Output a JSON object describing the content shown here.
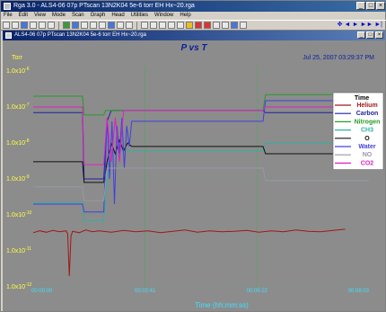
{
  "window": {
    "title": "Rga 3.0 - ALS4-06 07p PTscan 13N2K04 5e-6 torr EH Hx~20.rga",
    "buttons": [
      "_",
      "□",
      "×"
    ]
  },
  "menu": [
    "File",
    "Edit",
    "View",
    "Mode",
    "Scan",
    "Graph",
    "Head",
    "Utilities",
    "Window",
    "Help"
  ],
  "toolbar": {
    "icons": [
      "new-icon",
      "open-icon",
      "save-icon",
      "print-icon",
      "refresh-icon",
      "target-icon",
      "bar-icon",
      "bar-icon",
      "table-icon",
      "grid-icon",
      "grid-icon",
      "monitor-icon",
      "grid-icon",
      "grid-icon",
      "graph-icon",
      "leak-icon",
      "zoom-in-icon",
      "zoom-out-icon",
      "undo-icon",
      "filament-icon",
      "stop-icon",
      "red-x-icon",
      "pan-icon",
      "tools-icon",
      "chart-icon",
      "help-icon"
    ],
    "nav_icons": [
      "move-icon",
      "arrow-left-icon",
      "arrow-right-icon",
      "fast-forward-icon",
      "end-icon"
    ]
  },
  "child_window": {
    "title": "ALS4-06 07p PTscan 13N2K04 5e-6 torr EH Hx~20.rga",
    "buttons": [
      "_",
      "□",
      "×"
    ]
  },
  "chart_data": {
    "type": "line",
    "title": "P vs T",
    "timestamp": "Jul 25, 2007  03:29:37 PM",
    "ylabel": "Torr",
    "xlabel": "Time (hh:mm:ss)",
    "yscale": "log",
    "ylim": [
      1e-12,
      1e-06
    ],
    "xlim": [
      0,
      409
    ],
    "x_ticks": [
      "00:00:00",
      "00:02:41",
      "00:05:22",
      "00:08:03"
    ],
    "y_ticks": [
      {
        "mant": "1.0x10",
        "exp": "-6"
      },
      {
        "mant": "1.0x10",
        "exp": "-7"
      },
      {
        "mant": "1.0x10",
        "exp": "-8"
      },
      {
        "mant": "1.0x10",
        "exp": "-9"
      },
      {
        "mant": "1.0x10",
        "exp": "-10"
      },
      {
        "mant": "1.0x10",
        "exp": "-11"
      },
      {
        "mant": "1.0x10",
        "exp": "-12"
      }
    ],
    "legend_title": "Time",
    "legend_position": "right",
    "series": [
      {
        "name": "Helium",
        "color": "#a01818",
        "x": [
          0,
          8,
          16,
          24,
          32,
          40,
          42,
          44,
          46,
          48,
          56,
          64,
          72,
          80,
          95,
          110,
          125,
          140,
          155,
          170,
          185,
          200,
          215,
          230,
          245,
          260,
          275,
          290,
          305,
          320,
          335,
          350,
          365,
          380
        ],
        "y": [
          3.2e-11,
          3.6e-11,
          3.3e-11,
          3.7e-11,
          3.4e-11,
          3.6e-11,
          3e-11,
          2e-12,
          2.6e-11,
          3.5e-11,
          3.2e-11,
          3.8e-11,
          3.4e-11,
          3.6e-11,
          3.3e-11,
          3.7e-11,
          3.4e-11,
          3.6e-11,
          3.2e-11,
          3.5e-11,
          3.8e-11,
          3.3e-11,
          3.6e-11,
          3.4e-11,
          3.5e-11,
          3.7e-11,
          3.3e-11,
          3.6e-11,
          3.4e-11,
          3.8e-11,
          3.5e-11,
          3.4e-11,
          3.7e-11,
          4e-11
        ]
      },
      {
        "name": "Carbon",
        "color": "#2020a0",
        "x": [
          0,
          20,
          40,
          60,
          62,
          76,
          86,
          90,
          95,
          100,
          105,
          110,
          115,
          120,
          150,
          200,
          250,
          280,
          283,
          320,
          409
        ],
        "y": [
          7e-08,
          7e-08,
          7e-08,
          7e-08,
          1e-09,
          1e-09,
          1e-09,
          4e-08,
          8e-08,
          8e-08,
          8e-08,
          8e-08,
          8e-08,
          8e-08,
          8e-08,
          8e-08,
          8e-08,
          8e-08,
          7e-08,
          7e-08,
          7e-08
        ]
      },
      {
        "name": "Nitrogen",
        "color": "#2a9a2a",
        "x": [
          0,
          60,
          62,
          76,
          86,
          88,
          95,
          100,
          120,
          150,
          200,
          250,
          280,
          283,
          409
        ],
        "y": [
          2e-07,
          2e-07,
          6e-08,
          6e-08,
          6e-08,
          8e-08,
          8e-08,
          8e-08,
          8e-08,
          8e-08,
          8e-08,
          8e-08,
          8e-08,
          2.2e-07,
          2.2e-07
        ]
      },
      {
        "name": "CH3",
        "color": "#30b0a0",
        "x": [
          0,
          40,
          60,
          62,
          76,
          86,
          90,
          95,
          105,
          120,
          150,
          200,
          250,
          280,
          283,
          409
        ],
        "y": [
          2.2e-10,
          2.2e-10,
          2.2e-10,
          7e-11,
          7e-11,
          7e-11,
          1e-09,
          4e-09,
          6e-09,
          6e-09,
          6e-09,
          6e-09,
          6e-09,
          6e-09,
          1e-08,
          1e-08
        ]
      },
      {
        "name": "O",
        "color": "#101010",
        "x": [
          0,
          40,
          60,
          62,
          76,
          86,
          90,
          95,
          100,
          105,
          110,
          115,
          120,
          150,
          200,
          250,
          280,
          283,
          409
        ],
        "y": [
          3e-09,
          3e-09,
          3e-09,
          8e-10,
          8e-10,
          8e-10,
          3e-09,
          1e-08,
          5e-09,
          1.2e-08,
          6e-09,
          1e-08,
          8e-09,
          8e-09,
          8e-09,
          8e-09,
          8e-09,
          5e-09,
          5e-09
        ]
      },
      {
        "name": "Water",
        "color": "#4040e0",
        "x": [
          0,
          40,
          60,
          62,
          76,
          86,
          90,
          93,
          96,
          99,
          102,
          105,
          108,
          111,
          114,
          117,
          120,
          150,
          200,
          250,
          280,
          283,
          409
        ],
        "y": [
          2e-10,
          2e-10,
          2e-10,
          1.2e-10,
          1.2e-10,
          1.2e-10,
          5e-08,
          1e-09,
          4e-08,
          2e-10,
          3e-08,
          5e-09,
          5e-08,
          2e-09,
          3e-08,
          8e-09,
          4e-08,
          4e-08,
          4e-08,
          4e-08,
          4e-08,
          1.5e-07,
          1.5e-07
        ]
      },
      {
        "name": "NO",
        "color": "#9898a8",
        "x": [
          0,
          40,
          60,
          62,
          76,
          86,
          90,
          100,
          120,
          150,
          200,
          250,
          280,
          283,
          409
        ],
        "y": [
          6e-10,
          6e-10,
          6e-10,
          2.5e-10,
          2.5e-10,
          2.5e-10,
          2e-09,
          2e-09,
          2e-09,
          2e-09,
          2e-09,
          2e-09,
          2e-09,
          9e-10,
          9e-10
        ]
      },
      {
        "name": "CO2",
        "color": "#e020c0",
        "x": [
          0,
          60,
          62,
          76,
          86,
          90,
          95,
          100,
          105,
          110,
          120,
          150,
          200,
          250,
          280,
          283,
          409
        ],
        "y": [
          1e-07,
          1e-07,
          2.5e-09,
          2.5e-09,
          2.5e-09,
          5e-08,
          3e-09,
          5e-08,
          3e-09,
          8e-08,
          8e-08,
          8e-08,
          8e-08,
          8e-08,
          8e-08,
          1e-07,
          1e-07
        ]
      }
    ]
  }
}
